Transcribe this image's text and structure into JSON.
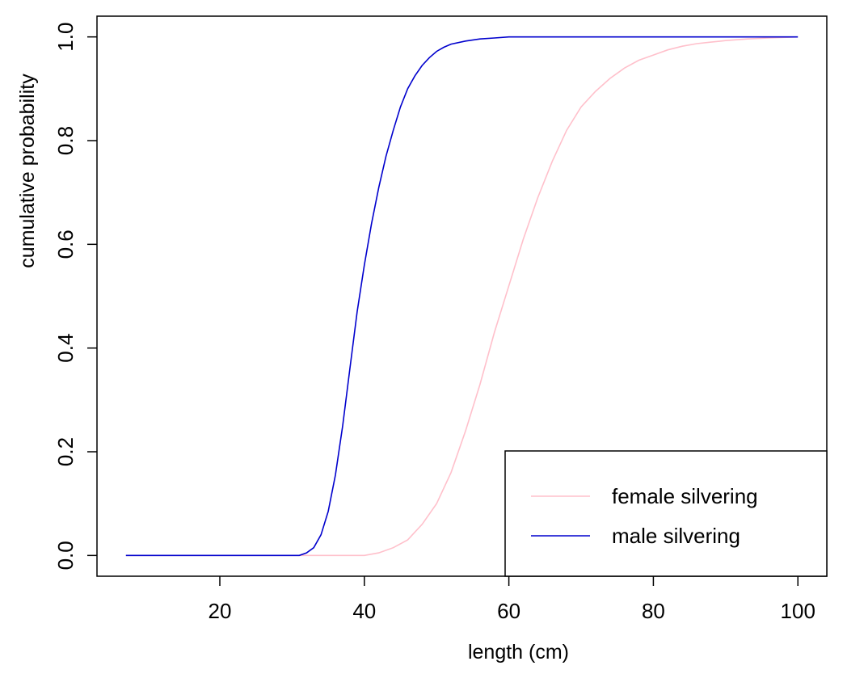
{
  "chart_data": {
    "type": "line",
    "xlabel": "length (cm)",
    "ylabel": "cumulative probability",
    "xlim": [
      3,
      104
    ],
    "ylim": [
      -0.04,
      1.04
    ],
    "x_ticks": [
      20,
      40,
      60,
      80,
      100
    ],
    "y_ticks": [
      0.0,
      0.2,
      0.4,
      0.6,
      0.8,
      1.0
    ],
    "x_tick_labels": [
      "20",
      "40",
      "60",
      "80",
      "100"
    ],
    "y_tick_labels": [
      "0.0",
      "0.2",
      "0.4",
      "0.6",
      "0.8",
      "1.0"
    ],
    "grid": false,
    "legend_position": "bottom-right",
    "series": [
      {
        "name": "female silvering",
        "color": "#ffc0cb",
        "points": [
          [
            7,
            0
          ],
          [
            30,
            0
          ],
          [
            40,
            0
          ],
          [
            42,
            0.005
          ],
          [
            44,
            0.015
          ],
          [
            46,
            0.03
          ],
          [
            48,
            0.06
          ],
          [
            50,
            0.1
          ],
          [
            52,
            0.16
          ],
          [
            54,
            0.24
          ],
          [
            56,
            0.33
          ],
          [
            58,
            0.43
          ],
          [
            60,
            0.52
          ],
          [
            62,
            0.61
          ],
          [
            64,
            0.69
          ],
          [
            66,
            0.76
          ],
          [
            68,
            0.82
          ],
          [
            70,
            0.865
          ],
          [
            72,
            0.895
          ],
          [
            74,
            0.92
          ],
          [
            76,
            0.94
          ],
          [
            78,
            0.955
          ],
          [
            80,
            0.965
          ],
          [
            82,
            0.975
          ],
          [
            84,
            0.982
          ],
          [
            86,
            0.987
          ],
          [
            88,
            0.99
          ],
          [
            90,
            0.993
          ],
          [
            93,
            0.996
          ],
          [
            96,
            0.998
          ],
          [
            100,
            1.0
          ]
        ]
      },
      {
        "name": "male silvering",
        "color": "#0000cd",
        "points": [
          [
            7,
            0
          ],
          [
            31,
            0
          ],
          [
            32,
            0.005
          ],
          [
            33,
            0.015
          ],
          [
            34,
            0.04
          ],
          [
            35,
            0.085
          ],
          [
            36,
            0.155
          ],
          [
            37,
            0.25
          ],
          [
            38,
            0.36
          ],
          [
            39,
            0.47
          ],
          [
            40,
            0.56
          ],
          [
            41,
            0.64
          ],
          [
            42,
            0.71
          ],
          [
            43,
            0.77
          ],
          [
            44,
            0.82
          ],
          [
            45,
            0.865
          ],
          [
            46,
            0.9
          ],
          [
            47,
            0.925
          ],
          [
            48,
            0.945
          ],
          [
            49,
            0.96
          ],
          [
            50,
            0.972
          ],
          [
            51,
            0.98
          ],
          [
            52,
            0.986
          ],
          [
            54,
            0.992
          ],
          [
            56,
            0.996
          ],
          [
            58,
            0.998
          ],
          [
            60,
            1.0
          ],
          [
            66,
            1.0
          ],
          [
            100,
            1.0
          ]
        ]
      }
    ]
  }
}
